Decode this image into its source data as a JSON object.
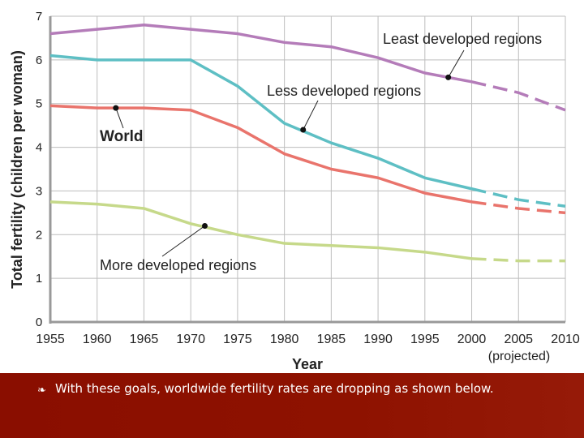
{
  "chart_data": {
    "type": "line",
    "xlabel": "Year",
    "ylabel": "Total fertility (children per woman)",
    "x": [
      1955,
      1960,
      1965,
      1970,
      1975,
      1980,
      1985,
      1990,
      1995,
      2000,
      2005,
      2010
    ],
    "xtick_labels": [
      "1955",
      "1960",
      "1965",
      "1970",
      "1975",
      "1980",
      "1985",
      "1990",
      "1995",
      "2000",
      "2005",
      "2010"
    ],
    "projected_label": "(projected)",
    "projected_from": 2000,
    "ylim": [
      0,
      7
    ],
    "yticks": [
      "0",
      "1",
      "2",
      "3",
      "4",
      "5",
      "6",
      "7"
    ],
    "grid": true,
    "series": [
      {
        "name": "Least developed regions",
        "color": "#b47cb9",
        "values": [
          6.6,
          6.7,
          6.8,
          6.7,
          6.6,
          6.4,
          6.3,
          6.05,
          5.7,
          5.5,
          5.25,
          4.85
        ],
        "marker": [
          1997.5,
          5.6
        ]
      },
      {
        "name": "Less developed regions",
        "color": "#5ebfc4",
        "values": [
          6.1,
          6.0,
          6.0,
          6.0,
          5.4,
          4.55,
          4.1,
          3.75,
          3.3,
          3.05,
          2.8,
          2.65
        ],
        "marker": [
          1982,
          4.4
        ]
      },
      {
        "name": "World",
        "color": "#e9746c",
        "values": [
          4.95,
          4.9,
          4.9,
          4.85,
          4.45,
          3.85,
          3.5,
          3.3,
          2.95,
          2.75,
          2.6,
          2.5
        ],
        "marker": [
          1962,
          4.9
        ]
      },
      {
        "name": "More developed regions",
        "color": "#c6d98a",
        "values": [
          2.75,
          2.7,
          2.6,
          2.25,
          2.0,
          1.8,
          1.75,
          1.7,
          1.6,
          1.45,
          1.4,
          1.4
        ],
        "marker": [
          1971.5,
          2.2
        ]
      }
    ]
  },
  "caption": {
    "bullet_icon": "fleuron-bullet-icon",
    "text": "With these goals, worldwide fertility rates are dropping as shown below."
  },
  "colors": {
    "banner": "#8b1000",
    "grid": "#bdbdbd"
  }
}
